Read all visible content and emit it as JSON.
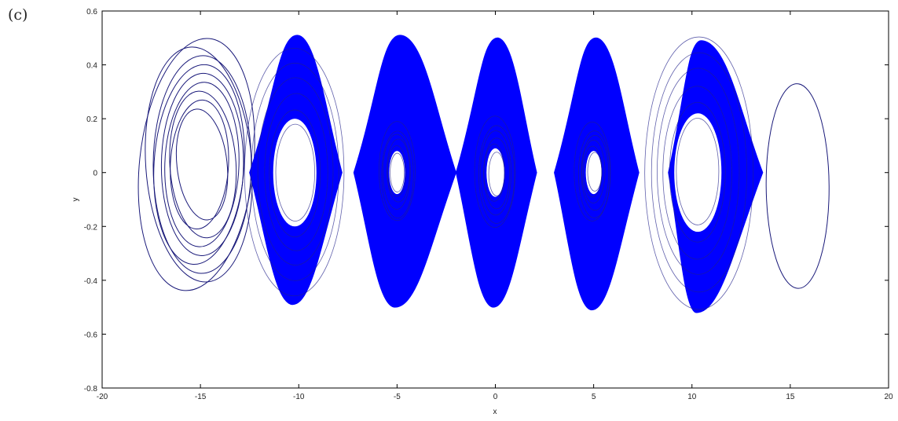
{
  "panel_label": "(c)",
  "chart_data": {
    "type": "line",
    "title": "",
    "xlabel": "x",
    "ylabel": "y",
    "xlim": [
      -20,
      20
    ],
    "ylim": [
      -0.8,
      0.6
    ],
    "xticks": [
      -20,
      -15,
      -10,
      -5,
      0,
      5,
      10,
      15,
      20
    ],
    "yticks": [
      -0.8,
      -0.6,
      -0.4,
      -0.2,
      0,
      0.2,
      0.4,
      0.6
    ],
    "grid": false,
    "series_color": "#0000ff",
    "sparse_color": "#1a1a7a",
    "bands": [
      {
        "center": 0,
        "x_min": -2.0,
        "x_max": 2.1,
        "y_top": 0.5,
        "y_bottom": -0.5,
        "hole_rx": 0.45,
        "hole_ry": 0.09
      },
      {
        "center": 5,
        "x_min": 3.0,
        "x_max": 7.3,
        "y_top": 0.5,
        "y_bottom": -0.51,
        "hole_rx": 0.4,
        "hole_ry": 0.08
      },
      {
        "center": -5,
        "x_min": -7.2,
        "x_max": -2.0,
        "y_top": 0.51,
        "y_bottom": -0.5,
        "hole_rx": 0.4,
        "hole_ry": 0.08
      },
      {
        "center": 10.3,
        "x_min": 8.8,
        "x_max": 13.6,
        "y_top": 0.49,
        "y_bottom": -0.52,
        "hole_rx": 1.2,
        "hole_ry": 0.22
      },
      {
        "center": -10.2,
        "x_min": -12.5,
        "x_max": -7.8,
        "y_top": 0.51,
        "y_bottom": -0.49,
        "hole_rx": 1.1,
        "hole_ry": 0.2
      }
    ],
    "sparse_loops": [
      {
        "name": "left-outer",
        "cx": -15.0,
        "cy": 0.03,
        "rx": 2.9,
        "ry": 0.47
      },
      {
        "name": "right-outer",
        "cx": 15.3,
        "cy": -0.05,
        "rx": 1.6,
        "ry": 0.38
      }
    ]
  }
}
